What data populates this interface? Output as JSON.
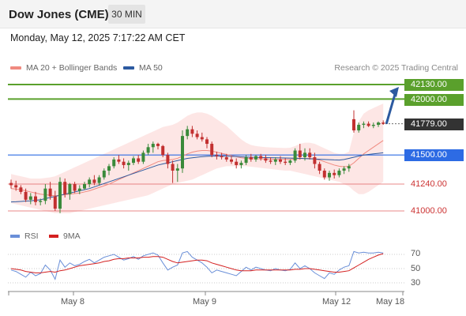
{
  "header": {
    "instrument": "Dow Jones (CME)",
    "timeframe": "30 MIN"
  },
  "timestamp": "Monday, May 12, 2025 7:17:22 AM CET",
  "legend": {
    "bollinger_label": "MA 20 + Bollinger Bands",
    "bollinger_color": "#f08a80",
    "ma50_label": "MA 50",
    "ma50_color": "#2c5aa0"
  },
  "credit": "Research © 2025 Trading Central",
  "price_levels": {
    "target_2": "42130.00",
    "target_1": "42000.00",
    "current": "41779.00",
    "pivot": "41500.00",
    "support_1": "41240.00",
    "support_2": "41000.00"
  },
  "colors": {
    "resistance": "#5aa02c",
    "pivot": "#2d6be4",
    "support": "#e06060",
    "candle_up": "#3a8a3a",
    "candle_down": "#c23030",
    "arrow": "#2c5aa0",
    "rsi": "#6a8fd8",
    "rsi_ma": "#d42020"
  },
  "rsi_panel": {
    "rsi_label": "RSI",
    "ma_label": "9MA",
    "levels": [
      "70",
      "50",
      "30"
    ]
  },
  "x_axis": {
    "labels": [
      "May 8",
      "May 9",
      "May 12",
      "May 18"
    ]
  },
  "chart_data": {
    "type": "candlestick",
    "y_range": [
      40900,
      42300
    ],
    "candles": [
      [
        41250,
        41280,
        41200,
        41230
      ],
      [
        41230,
        41270,
        41180,
        41210
      ],
      [
        41210,
        41230,
        41150,
        41170
      ],
      [
        41170,
        41200,
        41080,
        41100
      ],
      [
        41100,
        41160,
        41060,
        41130
      ],
      [
        41130,
        41170,
        41050,
        41080
      ],
      [
        41080,
        41110,
        41050,
        41090
      ],
      [
        41090,
        41240,
        41060,
        41200
      ],
      [
        41200,
        41260,
        41100,
        41130
      ],
      [
        41130,
        41180,
        41000,
        41020
      ],
      [
        41020,
        41300,
        40980,
        41260
      ],
      [
        41260,
        41290,
        41120,
        41150
      ],
      [
        41150,
        41250,
        41100,
        41240
      ],
      [
        41240,
        41260,
        41160,
        41180
      ],
      [
        41180,
        41230,
        41150,
        41200
      ],
      [
        41200,
        41260,
        41190,
        41240
      ],
      [
        41240,
        41300,
        41210,
        41280
      ],
      [
        41280,
        41320,
        41230,
        41250
      ],
      [
        41250,
        41320,
        41230,
        41300
      ],
      [
        41300,
        41380,
        41280,
        41360
      ],
      [
        41360,
        41420,
        41320,
        41400
      ],
      [
        41400,
        41480,
        41380,
        41460
      ],
      [
        41460,
        41500,
        41420,
        41440
      ],
      [
        41440,
        41470,
        41380,
        41410
      ],
      [
        41410,
        41450,
        41360,
        41430
      ],
      [
        41430,
        41490,
        41410,
        41470
      ],
      [
        41470,
        41500,
        41420,
        41440
      ],
      [
        41440,
        41540,
        41420,
        41520
      ],
      [
        41520,
        41600,
        41500,
        41570
      ],
      [
        41570,
        41620,
        41520,
        41600
      ],
      [
        41600,
        41610,
        41550,
        41580
      ],
      [
        41580,
        41590,
        41480,
        41500
      ],
      [
        41500,
        41520,
        41380,
        41420
      ],
      [
        41420,
        41450,
        41250,
        41360
      ],
      [
        41360,
        41420,
        41260,
        41380
      ],
      [
        41380,
        41720,
        41340,
        41670
      ],
      [
        41670,
        41760,
        41640,
        41730
      ],
      [
        41730,
        41760,
        41660,
        41690
      ],
      [
        41690,
        41720,
        41640,
        41660
      ],
      [
        41660,
        41700,
        41620,
        41640
      ],
      [
        41640,
        41660,
        41560,
        41600
      ],
      [
        41600,
        41620,
        41480,
        41500
      ],
      [
        41500,
        41530,
        41460,
        41490
      ],
      [
        41490,
        41520,
        41460,
        41480
      ],
      [
        41480,
        41510,
        41440,
        41460
      ],
      [
        41460,
        41490,
        41420,
        41440
      ],
      [
        41440,
        41470,
        41380,
        41410
      ],
      [
        41410,
        41450,
        41380,
        41430
      ],
      [
        41430,
        41500,
        41410,
        41480
      ],
      [
        41480,
        41510,
        41440,
        41460
      ],
      [
        41460,
        41500,
        41440,
        41490
      ],
      [
        41490,
        41510,
        41450,
        41470
      ],
      [
        41470,
        41500,
        41430,
        41450
      ],
      [
        41450,
        41480,
        41420,
        41440
      ],
      [
        41440,
        41480,
        41410,
        41460
      ],
      [
        41460,
        41490,
        41420,
        41440
      ],
      [
        41440,
        41470,
        41410,
        41430
      ],
      [
        41430,
        41460,
        41410,
        41450
      ],
      [
        41450,
        41560,
        41430,
        41540
      ],
      [
        41540,
        41600,
        41460,
        41480
      ],
      [
        41480,
        41560,
        41450,
        41520
      ],
      [
        41520,
        41560,
        41460,
        41480
      ],
      [
        41480,
        41520,
        41380,
        41420
      ],
      [
        41420,
        41440,
        41330,
        41360
      ],
      [
        41360,
        41380,
        41280,
        41300
      ],
      [
        41300,
        41360,
        41270,
        41340
      ],
      [
        41340,
        41370,
        41290,
        41320
      ],
      [
        41320,
        41380,
        41300,
        41360
      ],
      [
        41360,
        41400,
        41330,
        41380
      ],
      [
        41380,
        41420,
        41350,
        41400
      ],
      [
        41820,
        41900,
        41700,
        41720
      ],
      [
        41720,
        41790,
        41700,
        41770
      ],
      [
        41770,
        41800,
        41740,
        41780
      ],
      [
        41780,
        41800,
        41750,
        41760
      ],
      [
        41760,
        41790,
        41740,
        41770
      ],
      [
        41770,
        41800,
        41750,
        41790
      ],
      [
        41790,
        41810,
        41770,
        41779
      ]
    ],
    "ma50": [
      41080,
      41082,
      41085,
      41088,
      41090,
      41095,
      41100,
      41110,
      41120,
      41130,
      41140,
      41150,
      41160,
      41170,
      41180,
      41190,
      41200,
      41215,
      41230,
      41245,
      41260,
      41275,
      41290,
      41305,
      41320,
      41335,
      41350,
      41365,
      41380,
      41395,
      41410,
      41420,
      41430,
      41440,
      41450,
      41460,
      41470,
      41475,
      41480,
      41485,
      41488,
      41490,
      41490,
      41490,
      41490,
      41488,
      41486,
      41484,
      41482,
      41480,
      41479,
      41478,
      41477,
      41476,
      41475,
      41474,
      41473,
      41472,
      41471,
      41470,
      41468,
      41466,
      41464,
      41462,
      41460,
      41458,
      41456,
      41455,
      41460,
      41470,
      41480,
      41490,
      41500,
      41505,
      41510,
      41515,
      41520
    ],
    "ma20": [
      41200,
      41195,
      41190,
      41180,
      41170,
      41160,
      41150,
      41145,
      41140,
      41135,
      41140,
      41145,
      41150,
      41155,
      41160,
      41170,
      41180,
      41195,
      41210,
      41225,
      41240,
      41260,
      41280,
      41300,
      41320,
      41340,
      41360,
      41380,
      41400,
      41420,
      41440,
      41450,
      41455,
      41460,
      41470,
      41490,
      41510,
      41525,
      41535,
      41540,
      41540,
      41535,
      41525,
      41515,
      41505,
      41495,
      41485,
      41475,
      41470,
      41468,
      41466,
      41465,
      41464,
      41463,
      41462,
      41461,
      41460,
      41462,
      41465,
      41468,
      41470,
      41470,
      41465,
      41455,
      41440,
      41425,
      41410,
      41400,
      41395,
      41400,
      41430,
      41470,
      41510,
      41540,
      41570,
      41600,
      41630
    ],
    "bb_upper": [
      41330,
      41320,
      41310,
      41300,
      41290,
      41290,
      41290,
      41295,
      41300,
      41310,
      41330,
      41350,
      41370,
      41390,
      41410,
      41430,
      41450,
      41470,
      41490,
      41510,
      41530,
      41550,
      41570,
      41590,
      41610,
      41630,
      41650,
      41670,
      41690,
      41710,
      41730,
      41750,
      41760,
      41770,
      41790,
      41820,
      41850,
      41870,
      41880,
      41880,
      41870,
      41850,
      41820,
      41790,
      41760,
      41720,
      41680,
      41640,
      41610,
      41590,
      41580,
      41575,
      41570,
      41568,
      41566,
      41564,
      41562,
      41565,
      41580,
      41600,
      41610,
      41610,
      41600,
      41580,
      41560,
      41540,
      41520,
      41510,
      41510,
      41530,
      41700,
      41800,
      41870,
      41900,
      41920,
      41940,
      41960
    ],
    "bb_lower": [
      41070,
      41060,
      41050,
      41040,
      41030,
      41020,
      41010,
      41000,
      40990,
      40980,
      40980,
      40980,
      40980,
      40990,
      41000,
      41010,
      41020,
      41030,
      41040,
      41050,
      41060,
      41070,
      41080,
      41090,
      41100,
      41110,
      41120,
      41130,
      41140,
      41160,
      41180,
      41200,
      41220,
      41240,
      41250,
      41260,
      41270,
      41280,
      41300,
      41320,
      41340,
      41360,
      41380,
      41390,
      41400,
      41400,
      41400,
      41400,
      41400,
      41395,
      41390,
      41385,
      41380,
      41375,
      41370,
      41365,
      41360,
      41360,
      41350,
      41340,
      41330,
      41320,
      41310,
      41300,
      41290,
      41280,
      41270,
      41260,
      41240,
      41220,
      41180,
      41150,
      41150,
      41170,
      41200,
      41230,
      41260
    ],
    "rsi": [
      48,
      46,
      42,
      38,
      45,
      40,
      43,
      55,
      48,
      35,
      62,
      52,
      58,
      54,
      56,
      60,
      63,
      58,
      62,
      66,
      68,
      70,
      66,
      62,
      64,
      67,
      63,
      68,
      70,
      72,
      69,
      58,
      48,
      52,
      55,
      72,
      74,
      66,
      62,
      58,
      52,
      44,
      48,
      46,
      44,
      42,
      40,
      46,
      52,
      48,
      52,
      50,
      48,
      47,
      50,
      48,
      47,
      49,
      58,
      50,
      54,
      50,
      44,
      40,
      36,
      44,
      42,
      48,
      52,
      54,
      74,
      72,
      73,
      72,
      72,
      73,
      72
    ],
    "rsi_ma": [
      50,
      49,
      48,
      46,
      45,
      44,
      44,
      45,
      46,
      45,
      47,
      48,
      50,
      52,
      54,
      55,
      56,
      57,
      58,
      60,
      61,
      63,
      64,
      64,
      65,
      65,
      65,
      66,
      66,
      67,
      67,
      66,
      63,
      60,
      58,
      59,
      60,
      61,
      62,
      62,
      61,
      58,
      56,
      54,
      52,
      50,
      48,
      47,
      47,
      47,
      48,
      48,
      48,
      48,
      48,
      48,
      48,
      48,
      49,
      49,
      50,
      50,
      49,
      48,
      47,
      46,
      45,
      45,
      46,
      47,
      51,
      55,
      59,
      63,
      66,
      69,
      71
    ]
  }
}
